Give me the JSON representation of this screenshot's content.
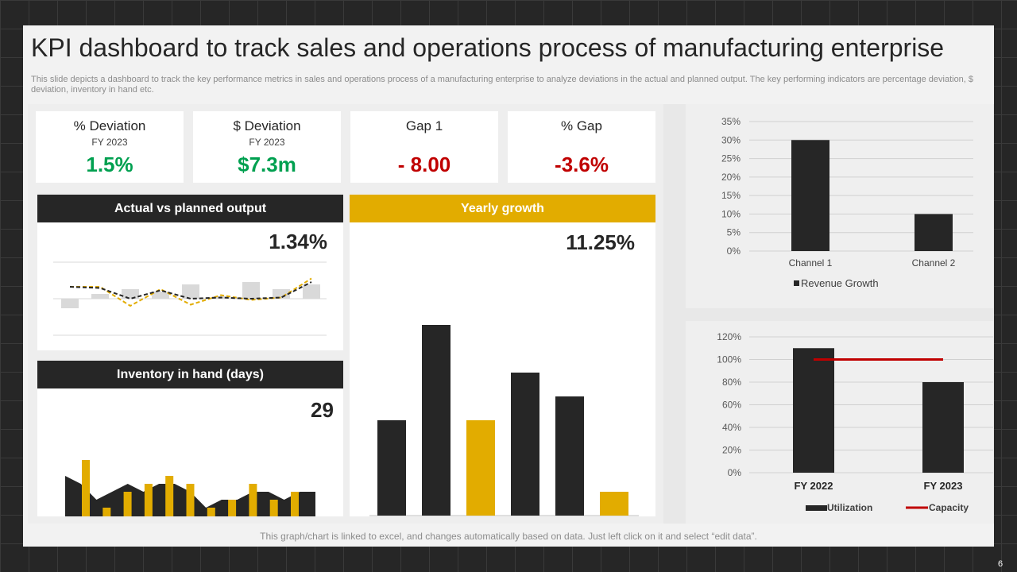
{
  "title": "KPI dashboard to track sales and operations process of manufacturing enterprise",
  "subtitle": "This slide depicts a dashboard to track the key performance metrics in sales and operations process of a manufacturing enterprise to analyze deviations in the actual and planned output. The key performing indicators are percentage deviation, $ deviation, inventory in hand etc.",
  "kpis": [
    {
      "label": "% Deviation",
      "sub": "FY 2023",
      "value": "1.5%",
      "color": "#00a050"
    },
    {
      "label": "$ Deviation",
      "sub": "FY 2023",
      "value": "$7.3m",
      "color": "#00a050"
    },
    {
      "label": "Gap 1",
      "sub": "",
      "value": "- 8.00",
      "color": "#c00000"
    },
    {
      "label": "% Gap",
      "sub": "",
      "value": "-3.6%",
      "color": "#c00000"
    }
  ],
  "panels": {
    "actual": {
      "title": "Actual vs planned output",
      "value": "1.34%"
    },
    "inventory": {
      "title": "Inventory in hand (days)",
      "value": "29"
    },
    "yearly": {
      "title": "Yearly growth",
      "value": "11.25%"
    }
  },
  "footer": "This graph/chart is linked to excel,  and changes automatically based on data. Just left click on it and select “edit data”.",
  "page_number": "6",
  "colors": {
    "dark": "#262626",
    "gold": "#e2ac00",
    "grey_bar": "#d9d9d9",
    "red": "#c00000",
    "green": "#00a050"
  },
  "chart_data": [
    {
      "id": "actual-vs-planned",
      "type": "bar",
      "bars": [
        -0.4,
        0.2,
        0.4,
        0.3,
        0.6,
        0.1,
        0.7,
        0.4,
        0.6
      ],
      "line_dark": [
        0.5,
        0.45,
        0.0,
        0.35,
        0.0,
        0.05,
        0.0,
        0.05,
        0.7
      ],
      "line_gold": [
        0.5,
        0.5,
        -0.3,
        0.4,
        -0.25,
        0.15,
        -0.05,
        0.05,
        0.85
      ],
      "ylim": [
        -0.7,
        1.0
      ],
      "title": "",
      "xlabel": "",
      "ylabel": ""
    },
    {
      "id": "inventory",
      "type": "area",
      "area": [
        6,
        5,
        3,
        4,
        5,
        4,
        5,
        5,
        4,
        2,
        3,
        3,
        4,
        4,
        3,
        4,
        4
      ],
      "gold_bars": [
        8,
        2,
        4,
        5,
        6,
        5,
        2,
        3,
        5,
        3,
        4
      ],
      "ylim": [
        0,
        8
      ],
      "title": "",
      "xlabel": "",
      "ylabel": ""
    },
    {
      "id": "yearly-growth",
      "type": "bar",
      "values": [
        120,
        240,
        120,
        180,
        150,
        30
      ],
      "highlight": [
        false,
        false,
        true,
        false,
        false,
        true
      ],
      "ylim": [
        0,
        300
      ],
      "title": "",
      "xlabel": "",
      "ylabel": ""
    },
    {
      "id": "revenue-growth",
      "type": "bar",
      "categories": [
        "Channel 1",
        "Channel 2"
      ],
      "series": [
        {
          "name": "Revenue Growth",
          "values": [
            30,
            10
          ]
        }
      ],
      "yticks": [
        "0%",
        "5%",
        "10%",
        "15%",
        "20%",
        "25%",
        "30%",
        "35%"
      ],
      "ylim": [
        0,
        35
      ],
      "legend": "bottom",
      "grid": true,
      "title": "",
      "xlabel": "",
      "ylabel": ""
    },
    {
      "id": "utilization-capacity",
      "type": "bar",
      "categories": [
        "FY 2022",
        "FY 2023"
      ],
      "series": [
        {
          "name": "Utilization",
          "values": [
            110,
            80
          ]
        },
        {
          "name": "Capacity",
          "values": [
            100,
            100
          ]
        }
      ],
      "yticks": [
        "0%",
        "20%",
        "40%",
        "60%",
        "80%",
        "100%",
        "120%"
      ],
      "ylim": [
        0,
        120
      ],
      "legend": "bottom",
      "grid": true,
      "title": "",
      "xlabel": "",
      "ylabel": ""
    }
  ]
}
